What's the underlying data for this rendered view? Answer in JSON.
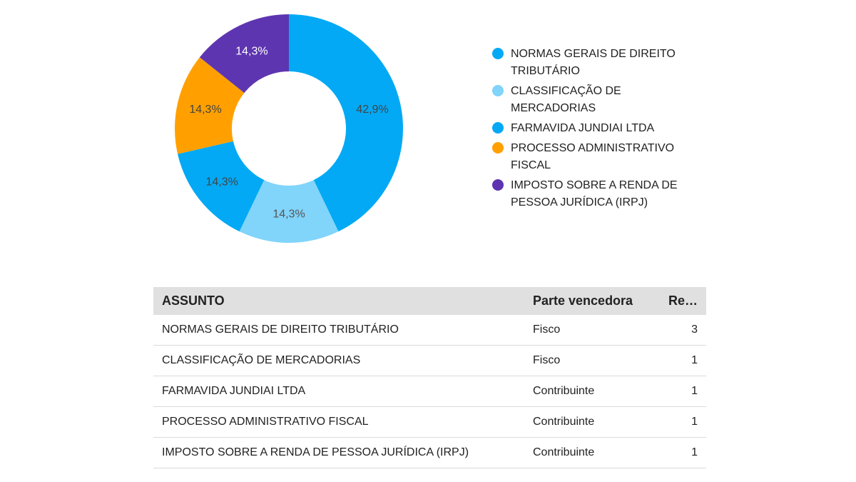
{
  "chart_data": {
    "type": "pie",
    "subtype": "donut",
    "legend_position": "right",
    "slices": [
      {
        "label": "NORMAS GERAIS DE DIREITO TRIBUTÁRIO",
        "value": 42.9,
        "display": "42,9%",
        "color": "#03a9f4",
        "label_color": "#444444"
      },
      {
        "label": "CLASSIFICAÇÃO DE MERCADORIAS",
        "value": 14.3,
        "display": "14,3%",
        "color": "#81d4fa",
        "label_color": "#555555"
      },
      {
        "label": "FARMAVIDA JUNDIAI LTDA",
        "value": 14.3,
        "display": "14,3%",
        "color": "#03a9f4",
        "label_color": "#444444"
      },
      {
        "label": "PROCESSO ADMINISTRATIVO FISCAL",
        "value": 14.3,
        "display": "14,3%",
        "color": "#ffa000",
        "label_color": "#444444"
      },
      {
        "label": "IMPOSTO SOBRE A RENDA DE PESSOA JURÍDICA (IRPJ)",
        "value": 14.3,
        "display": "14,3%",
        "color": "#5e35b1",
        "label_color": "#ffffff"
      }
    ]
  },
  "legend": {
    "items": [
      {
        "label": "NORMAS GERAIS DE DIREITO TRIBUTÁRIO",
        "color": "#03a9f4"
      },
      {
        "label": "CLASSIFICAÇÃO DE MERCADORIAS",
        "color": "#81d4fa"
      },
      {
        "label": "FARMAVIDA JUNDIAI LTDA",
        "color": "#03a9f4"
      },
      {
        "label": "PROCESSO ADMINISTRATIVO FISCAL",
        "color": "#ffa000"
      },
      {
        "label": "IMPOSTO SOBRE A RENDA DE PESSOA JURÍDICA (IRPJ)",
        "color": "#5e35b1"
      }
    ]
  },
  "table": {
    "headers": [
      "ASSUNTO",
      "Parte vencedora",
      "Re…"
    ],
    "rows": [
      [
        "NORMAS GERAIS DE DIREITO TRIBUTÁRIO",
        "Fisco",
        "3"
      ],
      [
        "CLASSIFICAÇÃO DE MERCADORIAS",
        "Fisco",
        "1"
      ],
      [
        "FARMAVIDA JUNDIAI LTDA",
        "Contribuinte",
        "1"
      ],
      [
        "PROCESSO ADMINISTRATIVO FISCAL",
        "Contribuinte",
        "1"
      ],
      [
        "IMPOSTO SOBRE A RENDA DE PESSOA JURÍDICA (IRPJ)",
        "Contribuinte",
        "1"
      ]
    ]
  }
}
